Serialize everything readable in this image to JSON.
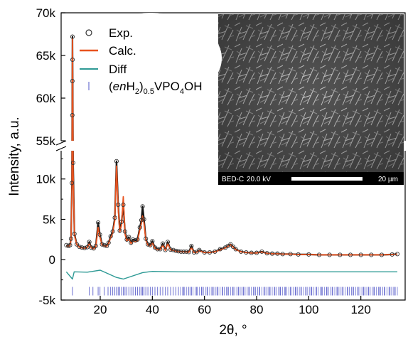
{
  "chart_data": {
    "type": "line",
    "xlabel": "2θ, °",
    "ylabel": "Intensity, a.u.",
    "xlim": [
      5,
      137
    ],
    "ylim_lower": [
      -5000,
      13500
    ],
    "ylim_upper": [
      55000,
      70000
    ],
    "axis_break": "between 13.5k and 55k",
    "xticks": [
      20,
      40,
      60,
      80,
      100,
      120
    ],
    "xtick_labels": [
      "20",
      "40",
      "60",
      "80",
      "100",
      "120"
    ],
    "yticks": [
      -5000,
      0,
      5000,
      10000,
      55000,
      60000,
      65000,
      70000
    ],
    "ytick_labels": [
      "-5k",
      "0",
      "5k",
      "10k",
      "55k",
      "60k",
      "65k",
      "70k"
    ],
    "legend": {
      "placement": "top-left",
      "entries": [
        {
          "label": "Exp.",
          "style": "open-circle",
          "color": "#333333"
        },
        {
          "label": "Calc.",
          "style": "line",
          "color": "#e8531f"
        },
        {
          "label": "Diff",
          "style": "line",
          "color": "#2e9a95"
        },
        {
          "label": "(enH2)0.5VPO4OH",
          "style": "tick",
          "color": "#6b6fd0",
          "label_parts": {
            "prefix_open": "(",
            "italic": "en",
            "h": "H",
            "sub1": "2",
            "close": ")",
            "sub2": "0.5",
            "mid": "VPO",
            "sub3": "4",
            "suffix": "OH"
          }
        }
      ]
    },
    "series": [
      {
        "name": "Exp.",
        "style": "open-circle",
        "x": [
          7,
          7.8,
          8.4,
          8.8,
          9.15,
          9.35,
          9.6,
          10.1,
          11,
          12,
          13,
          14,
          15,
          15.8,
          16.6,
          17.5,
          18.3,
          19.2,
          19.9,
          20.7,
          21.6,
          22.5,
          23.2,
          24,
          24.8,
          25.6,
          26.25,
          26.9,
          27.5,
          28.2,
          28.85,
          29.5,
          30.2,
          31,
          31.8,
          32.6,
          33.5,
          34.3,
          35.2,
          35.8,
          36.25,
          36.8,
          37.5,
          38.3,
          39.2,
          40,
          41,
          42,
          43,
          44,
          45,
          45.9,
          47,
          48,
          49,
          50,
          51,
          52,
          53,
          54,
          55,
          56,
          57,
          58,
          60,
          62,
          64,
          66,
          68,
          69,
          70,
          71,
          72,
          74,
          76,
          78,
          80,
          82,
          84,
          86,
          88,
          90,
          93,
          96,
          100,
          104,
          108,
          112,
          116,
          120,
          124,
          128,
          132,
          134
        ],
        "y": [
          1800,
          1700,
          1800,
          2600,
          9500,
          67200,
          12000,
          3200,
          1900,
          1600,
          1500,
          1450,
          1550,
          2200,
          1500,
          1400,
          1700,
          4600,
          3100,
          1900,
          1800,
          1700,
          2100,
          2900,
          3500,
          5200,
          12200,
          6800,
          3600,
          4700,
          6800,
          3500,
          2500,
          2800,
          2100,
          2500,
          2400,
          2500,
          4000,
          4900,
          6600,
          5000,
          2600,
          1900,
          1800,
          2300,
          1500,
          1300,
          1300,
          2000,
          1200,
          2200,
          1250,
          1200,
          1100,
          1050,
          1000,
          1000,
          1000,
          950,
          1700,
          900,
          950,
          1200,
          900,
          900,
          1000,
          1300,
          1500,
          1700,
          1900,
          1600,
          1300,
          1000,
          900,
          850,
          850,
          1000,
          800,
          750,
          750,
          700,
          700,
          650,
          650,
          600,
          600,
          600,
          600,
          600,
          600,
          600,
          650,
          700
        ]
      },
      {
        "name": "Calc.",
        "style": "line",
        "color": "#e8531f",
        "x": [
          7,
          7.8,
          8.4,
          8.8,
          9.15,
          9.35,
          9.6,
          10.1,
          11,
          12,
          13,
          14,
          15,
          15.8,
          16.6,
          17.5,
          18.3,
          19.2,
          19.9,
          20.7,
          21.6,
          22.5,
          23.2,
          24,
          24.8,
          25.6,
          26.25,
          26.9,
          27.5,
          28.2,
          28.85,
          29.5,
          30.2,
          31,
          31.8,
          32.6,
          33.5,
          34.3,
          35.2,
          35.8,
          36.25,
          36.8,
          37.5,
          38.3,
          39.2,
          40,
          41,
          42,
          43,
          44,
          45,
          45.9,
          47,
          48,
          49,
          50,
          51,
          52,
          53,
          54,
          55,
          56,
          57,
          58,
          60,
          62,
          64,
          66,
          68,
          69,
          70,
          71,
          72,
          74,
          76,
          78,
          80,
          82,
          84,
          86,
          88,
          90,
          93,
          96,
          100,
          104,
          108,
          112,
          116,
          120,
          124,
          128,
          132,
          134
        ],
        "y": [
          1700,
          1650,
          1750,
          2400,
          9000,
          67000,
          11000,
          3000,
          1850,
          1550,
          1450,
          1400,
          1500,
          2000,
          1450,
          1350,
          1600,
          4000,
          2800,
          1800,
          1700,
          1650,
          2000,
          2700,
          3300,
          4900,
          11600,
          6300,
          3400,
          4400,
          7800,
          3200,
          2300,
          2600,
          2000,
          2300,
          2200,
          2300,
          3700,
          4500,
          5400,
          4500,
          2400,
          1800,
          1700,
          2100,
          1400,
          1250,
          1250,
          1800,
          1150,
          2000,
          1200,
          1150,
          1050,
          1000,
          980,
          970,
          960,
          920,
          1500,
          880,
          920,
          1100,
          880,
          880,
          980,
          1200,
          1450,
          1650,
          1850,
          1550,
          1250,
          980,
          880,
          830,
          830,
          950,
          780,
          740,
          740,
          690,
          690,
          640,
          640,
          600,
          600,
          600,
          600,
          600,
          600,
          600,
          640,
          680
        ]
      },
      {
        "name": "Diff",
        "style": "line",
        "color": "#2e9a95",
        "x": [
          7,
          9.35,
          10,
          15,
          20,
          26.25,
          28.85,
          36.25,
          40,
          50,
          60,
          80,
          100,
          120,
          134
        ],
        "y": [
          -1500,
          -2400,
          -1500,
          -1550,
          -1300,
          -2200,
          -2400,
          -1600,
          -1450,
          -1500,
          -1500,
          -1500,
          -1500,
          -1500,
          -1500
        ]
      },
      {
        "name": "(enH2)0.5VPO4OH",
        "style": "tick",
        "color": "#6b6fd0",
        "tick_y": -3900,
        "positions": [
          9.35,
          15.8,
          17.2,
          19.2,
          19.9,
          21.5,
          23.0,
          24.0,
          24.8,
          25.6,
          26.25,
          26.9,
          27.5,
          28.2,
          28.85,
          29.5,
          30.2,
          31.0,
          31.8,
          32.6,
          33.5,
          34.3,
          35.2,
          35.8,
          36.25,
          36.8,
          37.5,
          38.3,
          39.2,
          40.0,
          41.0,
          42.0,
          43.0,
          44.0,
          45.0,
          45.9,
          47.0,
          48.0,
          49.0,
          50.0,
          52.0,
          54.0,
          55.0,
          57.0,
          59.0,
          61.0,
          63.0,
          65.0,
          67.0,
          69.0,
          71.0,
          73.0,
          75.0,
          77.0,
          79.0,
          81.0,
          83.0,
          85.0,
          87.0,
          89.0,
          91.0,
          93.0,
          95.0,
          97.0,
          99.0,
          101.0,
          103.0,
          105.0,
          107.0,
          109.0,
          111.0,
          113.0,
          115.0,
          117.0,
          119.0,
          121.0,
          123.0,
          125.0,
          127.0,
          129.0,
          131.0,
          133.0
        ]
      }
    ]
  },
  "inset": {
    "footer_left": "BED-C",
    "footer_mid": "20.0 kV",
    "scale_label": "20 µm"
  }
}
